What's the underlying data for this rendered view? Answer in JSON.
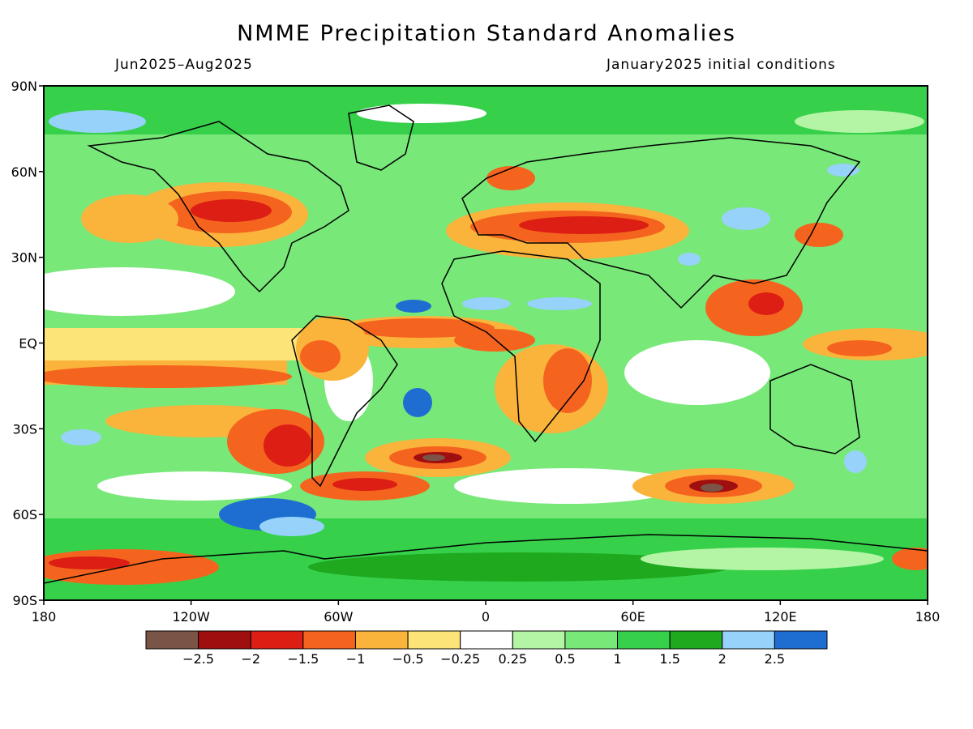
{
  "title": "NMME Precipitation Standard Anomalies",
  "period": "Jun2025–Aug2025",
  "initial_conditions": "January2025 initial conditions",
  "axes": {
    "lat_labels": [
      "90N",
      "60N",
      "30N",
      "EQ",
      "30S",
      "60S",
      "90S"
    ],
    "lon_labels": [
      "180",
      "120W",
      "60W",
      "0",
      "60E",
      "120E",
      "180"
    ]
  },
  "colorbar": {
    "colors": [
      "#7b5448",
      "#a00f0f",
      "#dc1e14",
      "#f5641e",
      "#fab43c",
      "#fde478",
      "#ffffff",
      "#b4f5a5",
      "#78e878",
      "#37d04b",
      "#1ea91e",
      "#96d2fa",
      "#1e6ed2"
    ],
    "labels": [
      "−2.5",
      "−2",
      "−1.5",
      "−1",
      "−0.5",
      "−0.25",
      "0.25",
      "0.5",
      "1",
      "1.5",
      "2",
      "2.5"
    ]
  }
}
